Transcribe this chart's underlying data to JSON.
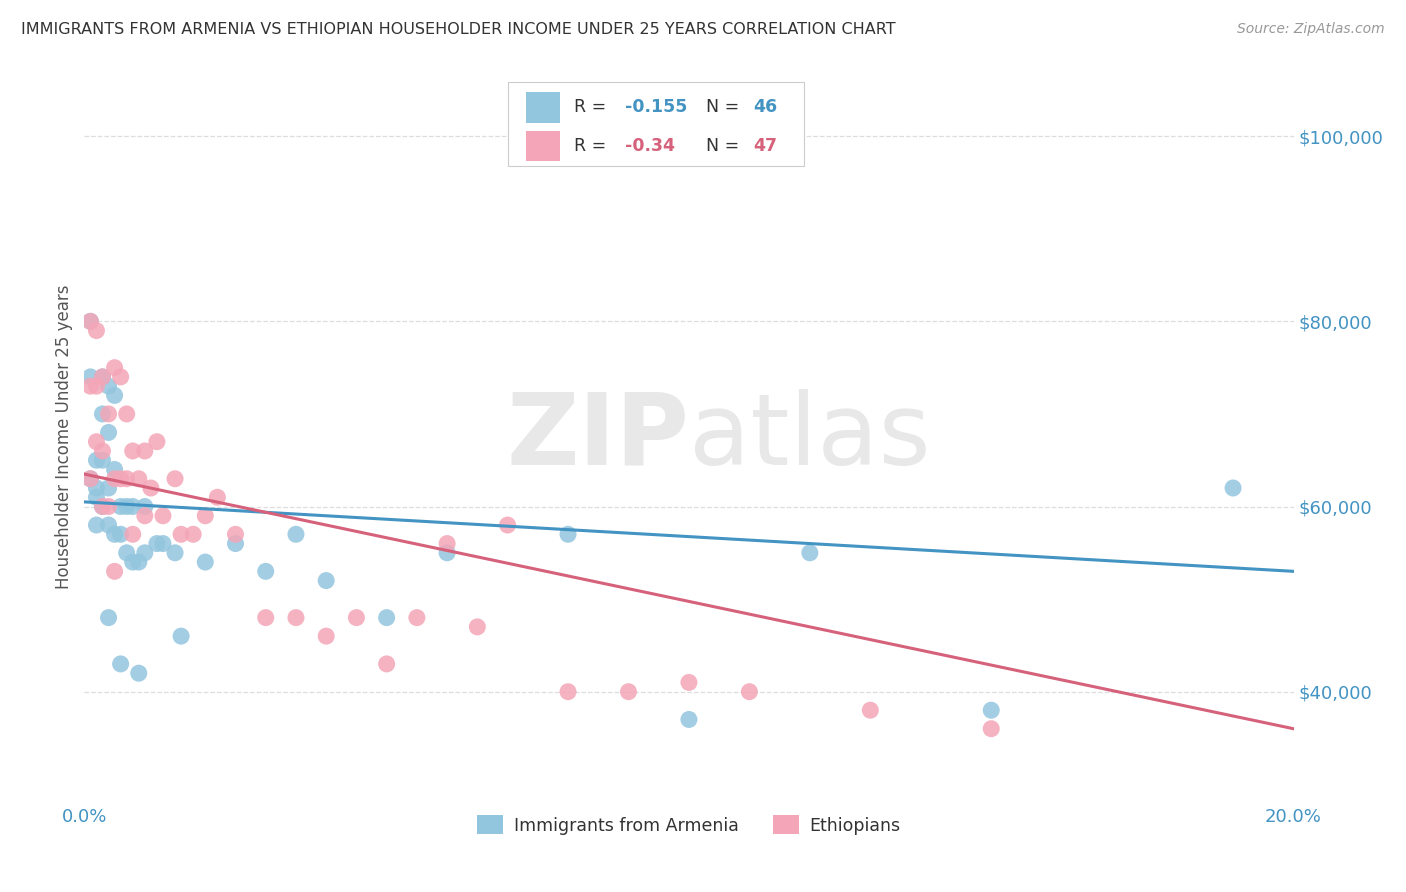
{
  "title": "IMMIGRANTS FROM ARMENIA VS ETHIOPIAN HOUSEHOLDER INCOME UNDER 25 YEARS CORRELATION CHART",
  "source": "Source: ZipAtlas.com",
  "ylabel": "Householder Income Under 25 years",
  "xlim": [
    0.0,
    0.2
  ],
  "ylim": [
    28000,
    107000
  ],
  "yticks": [
    40000,
    60000,
    80000,
    100000
  ],
  "ytick_labels": [
    "$40,000",
    "$60,000",
    "$80,000",
    "$100,000"
  ],
  "armenia_color": "#92c5de",
  "ethiopia_color": "#f4a6b8",
  "line_armenia_color": "#4393c3",
  "line_ethiopia_color": "#d6617b",
  "R_armenia": -0.155,
  "N_armenia": 46,
  "R_ethiopia": -0.34,
  "N_ethiopia": 47,
  "legend_label_armenia": "Immigrants from Armenia",
  "legend_label_ethiopia": "Ethiopians",
  "armenia_x": [
    0.001,
    0.001,
    0.001,
    0.002,
    0.002,
    0.002,
    0.002,
    0.003,
    0.003,
    0.003,
    0.003,
    0.004,
    0.004,
    0.004,
    0.004,
    0.004,
    0.005,
    0.005,
    0.005,
    0.006,
    0.006,
    0.006,
    0.007,
    0.007,
    0.008,
    0.008,
    0.009,
    0.009,
    0.01,
    0.01,
    0.012,
    0.013,
    0.015,
    0.016,
    0.02,
    0.025,
    0.03,
    0.035,
    0.04,
    0.05,
    0.06,
    0.08,
    0.1,
    0.12,
    0.15,
    0.19
  ],
  "armenia_y": [
    80000,
    74000,
    63000,
    65000,
    62000,
    61000,
    58000,
    74000,
    70000,
    65000,
    60000,
    73000,
    68000,
    62000,
    58000,
    48000,
    72000,
    64000,
    57000,
    60000,
    57000,
    43000,
    60000,
    55000,
    60000,
    54000,
    54000,
    42000,
    60000,
    55000,
    56000,
    56000,
    55000,
    46000,
    54000,
    56000,
    53000,
    57000,
    52000,
    48000,
    55000,
    57000,
    37000,
    55000,
    38000,
    62000
  ],
  "ethiopia_x": [
    0.001,
    0.001,
    0.001,
    0.002,
    0.002,
    0.002,
    0.003,
    0.003,
    0.003,
    0.004,
    0.004,
    0.005,
    0.005,
    0.005,
    0.006,
    0.006,
    0.007,
    0.007,
    0.008,
    0.008,
    0.009,
    0.01,
    0.01,
    0.011,
    0.012,
    0.013,
    0.015,
    0.016,
    0.018,
    0.02,
    0.022,
    0.025,
    0.03,
    0.035,
    0.04,
    0.045,
    0.05,
    0.055,
    0.06,
    0.065,
    0.07,
    0.08,
    0.09,
    0.1,
    0.11,
    0.13,
    0.15
  ],
  "ethiopia_y": [
    80000,
    73000,
    63000,
    79000,
    73000,
    67000,
    66000,
    60000,
    74000,
    70000,
    60000,
    75000,
    63000,
    53000,
    74000,
    63000,
    70000,
    63000,
    57000,
    66000,
    63000,
    66000,
    59000,
    62000,
    67000,
    59000,
    63000,
    57000,
    57000,
    59000,
    61000,
    57000,
    48000,
    48000,
    46000,
    48000,
    43000,
    48000,
    56000,
    47000,
    58000,
    40000,
    40000,
    41000,
    40000,
    38000,
    36000
  ],
  "watermark_zip": "ZIP",
  "watermark_atlas": "atlas",
  "background_color": "#ffffff",
  "grid_color": "#dddddd",
  "title_color": "#333333",
  "tick_color": "#4393c3"
}
